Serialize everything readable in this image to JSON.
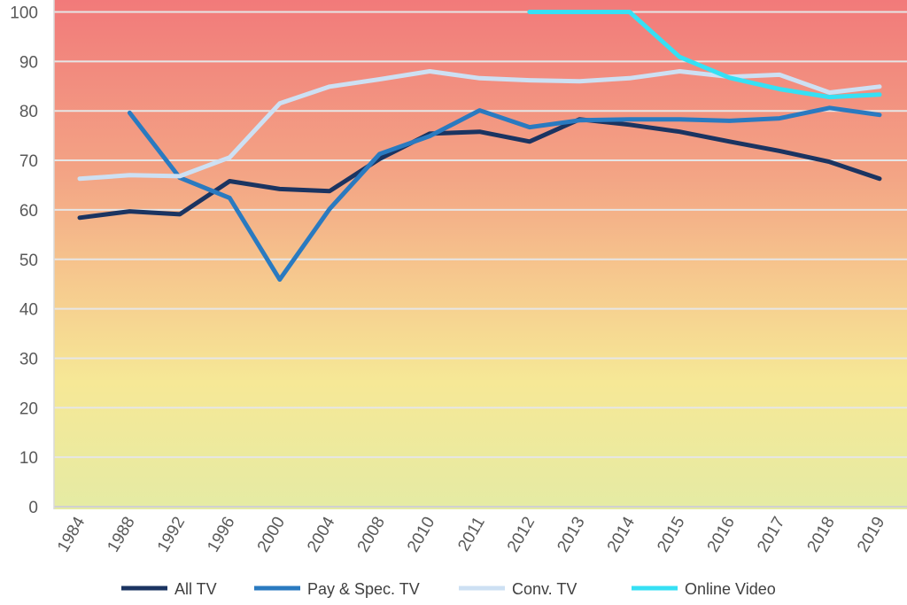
{
  "chart_data": {
    "type": "line",
    "title": "",
    "xlabel": "",
    "ylabel": "",
    "categories": [
      "1984",
      "1988",
      "1992",
      "1996",
      "2000",
      "2004",
      "2008",
      "2010",
      "2011",
      "2012",
      "2013",
      "2014",
      "2015",
      "2016",
      "2017",
      "2018",
      "2019"
    ],
    "ylim": [
      0,
      100
    ],
    "yticks": [
      0,
      10,
      20,
      30,
      40,
      50,
      60,
      70,
      80,
      90,
      100
    ],
    "grid": true,
    "legend_position": "bottom",
    "background": "vertical gradient red (top) to yellow-green (bottom)",
    "series": [
      {
        "name": "All TV",
        "color": "#1b3461",
        "values": [
          58.4,
          59.7,
          59.1,
          65.8,
          64.2,
          63.8,
          70.3,
          75.4,
          75.8,
          73.8,
          78.3,
          77.2,
          75.8,
          73.8,
          71.9,
          69.7,
          66.3
        ]
      },
      {
        "name": "Pay & Spec. TV",
        "color": "#2a7ac0",
        "values": [
          null,
          79.6,
          66.5,
          62.4,
          45.9,
          60.2,
          71.3,
          74.9,
          80.1,
          76.7,
          78.1,
          78.3,
          78.3,
          78.0,
          78.5,
          80.6,
          79.2
        ]
      },
      {
        "name": "Conv. TV",
        "color": "#cde0f3",
        "values": [
          66.3,
          67.0,
          66.8,
          70.6,
          81.5,
          84.9,
          86.4,
          88.0,
          86.6,
          86.2,
          86.0,
          86.6,
          88.0,
          86.9,
          87.3,
          83.7,
          84.9
        ]
      },
      {
        "name": "Online Video",
        "color": "#36e0f4",
        "values": [
          null,
          null,
          null,
          null,
          null,
          null,
          null,
          null,
          null,
          100,
          100,
          100,
          90.9,
          86.7,
          84.4,
          82.8,
          83.3
        ]
      }
    ]
  }
}
